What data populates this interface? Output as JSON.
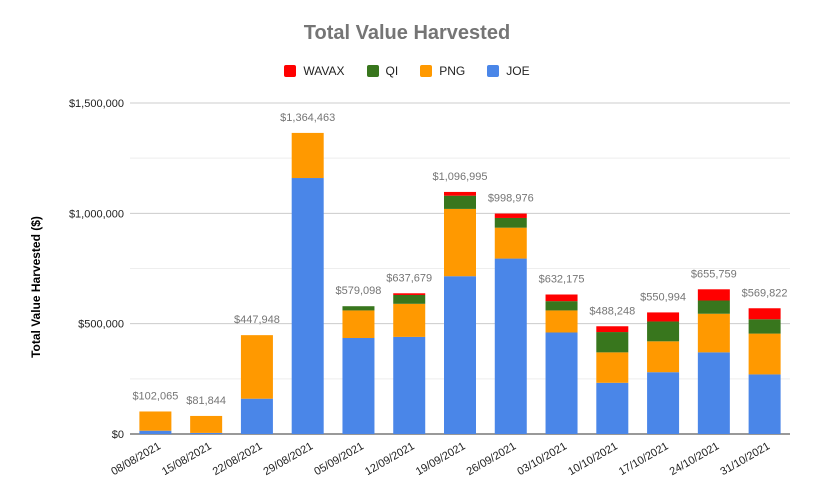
{
  "chart_data": {
    "type": "bar",
    "stacked": true,
    "title": "Total Value Harvested",
    "xlabel": "",
    "ylabel": "Total Value Harvested ($)",
    "ylim": [
      0,
      1500000
    ],
    "yticks": [
      "$0",
      "$500,000",
      "$1,000,000",
      "$1,500,000"
    ],
    "grid": true,
    "legend_position": "top",
    "categories": [
      "08/08/2021",
      "15/08/2021",
      "22/08/2021",
      "29/08/2021",
      "05/09/2021",
      "12/09/2021",
      "19/09/2021",
      "26/09/2021",
      "03/10/2021",
      "10/10/2021",
      "17/10/2021",
      "24/10/2021",
      "31/10/2021"
    ],
    "series": [
      {
        "name": "JOE",
        "color": "#4a86e8",
        "values": [
          15000,
          5000,
          160000,
          1160000,
          435000,
          440000,
          715000,
          795000,
          460000,
          232000,
          280000,
          370000,
          270000
        ]
      },
      {
        "name": "PNG",
        "color": "#ff9900",
        "values": [
          87065,
          76844,
          287948,
          204463,
          125000,
          150000,
          305000,
          140000,
          100000,
          138000,
          140000,
          175000,
          185000
        ]
      },
      {
        "name": "QI",
        "color": "#38761d",
        "values": [
          0,
          0,
          0,
          0,
          19098,
          40000,
          60000,
          44000,
          42000,
          92000,
          90000,
          60000,
          65000
        ]
      },
      {
        "name": "WAVAX",
        "color": "#ff0000",
        "values": [
          0,
          0,
          0,
          0,
          0,
          7679,
          16995,
          19976,
          30175,
          26248,
          40994,
          50759,
          49822
        ]
      }
    ],
    "totals": [
      "$102,065",
      "$81,844",
      "$447,948",
      "$1,364,463",
      "$579,098",
      "$637,679",
      "$1,096,995",
      "$998,976",
      "$632,175",
      "$488,248",
      "$550,994",
      "$655,759",
      "$569,822"
    ],
    "legend_order": [
      "WAVAX",
      "QI",
      "PNG",
      "JOE"
    ]
  }
}
